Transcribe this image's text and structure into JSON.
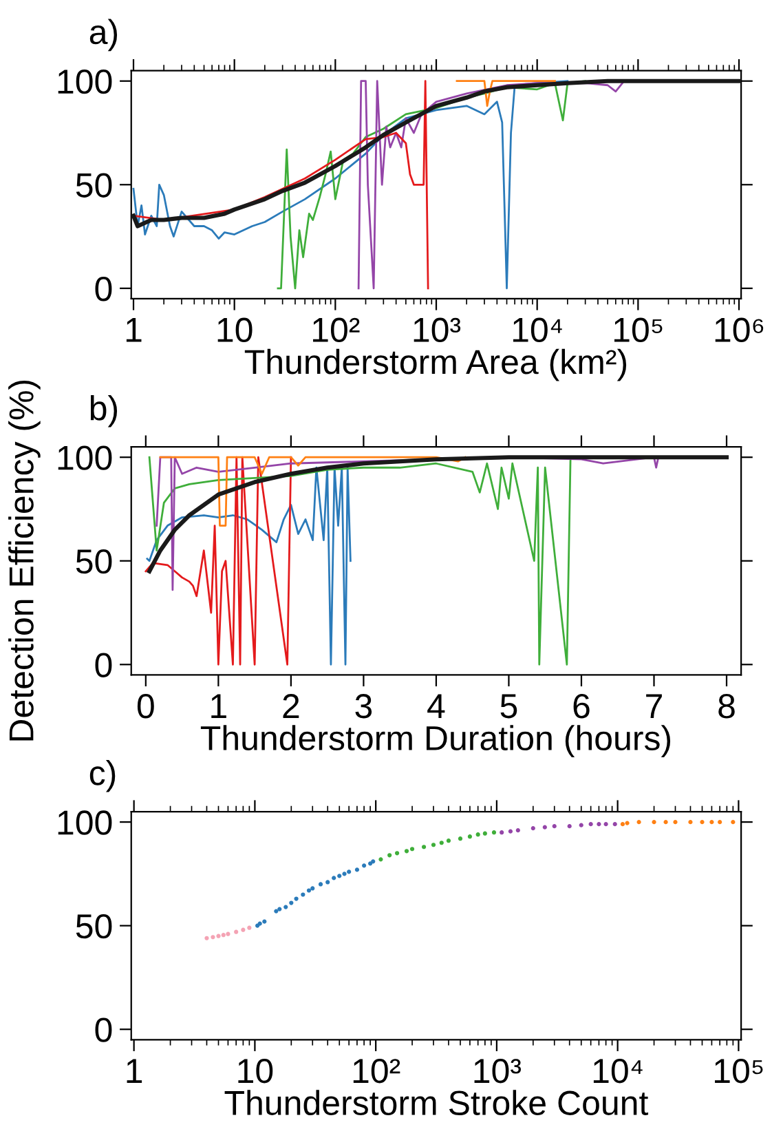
{
  "chart_data": [
    {
      "type": "line",
      "title": "a)",
      "xlabel": "Thunderstorm Area (km²)",
      "log": "x",
      "xlim": [
        0.95,
        1050000.0
      ],
      "ylim": [
        -5,
        105
      ],
      "yticks": [
        0,
        50,
        100
      ],
      "grid": false,
      "legend": false,
      "line_style": "solid",
      "marker": "none",
      "xticks": [
        {
          "value": 1,
          "label": "1"
        },
        {
          "value": 10,
          "label": "10"
        },
        {
          "value": 100,
          "label": "10²"
        },
        {
          "value": 1000,
          "label": "10³"
        },
        {
          "value": 10000,
          "label": "10⁴"
        },
        {
          "value": 100000,
          "label": "10⁵"
        },
        {
          "value": 1000000,
          "label": "10⁶"
        }
      ],
      "series": [
        {
          "color": "#2b7bba",
          "x": [
            1,
            1.1,
            1.2,
            1.3,
            1.5,
            1.7,
            1.8,
            2,
            2.3,
            2.5,
            3,
            4,
            5,
            6,
            7,
            8,
            10,
            15,
            20,
            30,
            50,
            100,
            200,
            300,
            500,
            1000,
            2000,
            3000,
            4000,
            4500,
            5000,
            5500,
            6000,
            10000,
            20000
          ],
          "values": [
            48,
            30,
            40,
            26,
            35,
            30,
            50,
            45,
            30,
            25,
            37,
            30,
            30,
            28,
            24,
            27,
            26,
            30,
            32,
            37,
            43,
            53,
            65,
            74,
            82,
            86,
            88,
            84,
            90,
            80,
            0,
            75,
            98,
            99,
            100
          ]
        },
        {
          "color": "#3fae3a",
          "x": [
            27,
            29,
            33,
            36,
            40,
            44,
            48,
            55,
            60,
            70,
            80,
            90,
            100,
            120,
            150,
            200,
            300,
            500,
            1000,
            2000,
            3000,
            5000,
            10000,
            15000,
            18000,
            20000,
            30000
          ],
          "values": [
            0,
            0,
            67,
            25,
            0,
            28,
            15,
            36,
            33,
            44,
            55,
            66,
            43,
            62,
            65,
            73,
            77,
            84,
            87,
            92,
            94,
            97,
            96,
            99,
            81,
            99,
            100
          ]
        },
        {
          "color": "#9445a8",
          "x": [
            170,
            180,
            200,
            210,
            240,
            260,
            290,
            320,
            350,
            400,
            450,
            500,
            600,
            700,
            800,
            1000,
            2000,
            5000,
            10000,
            30000,
            50000,
            60000,
            70000
          ],
          "values": [
            0,
            100,
            100,
            50,
            0,
            100,
            50,
            78,
            68,
            75,
            68,
            82,
            75,
            83,
            86,
            90,
            94,
            98,
            99,
            99,
            98,
            95,
            99
          ]
        },
        {
          "color": "#e41a1c",
          "x": [
            1,
            2,
            10,
            20,
            50,
            100,
            200,
            300,
            400,
            500,
            550,
            600,
            750,
            780,
            830
          ],
          "values": [
            35,
            33,
            38,
            44,
            53,
            62,
            72,
            73,
            75,
            70,
            55,
            50,
            50,
            100,
            0
          ]
        },
        {
          "color": "#ff8013",
          "x": [
            1600,
            3000,
            3200,
            3400,
            3600,
            5000,
            10000,
            15000
          ],
          "values": [
            100,
            100,
            88,
            95,
            100,
            100,
            100,
            100
          ]
        },
        {
          "color": "#1a1a1a",
          "x": [
            1,
            1.1,
            1.5,
            2,
            3,
            5,
            8,
            10,
            20,
            30,
            50,
            100,
            200,
            300,
            500,
            1000,
            2000,
            3000,
            5000,
            10000,
            20000,
            50000,
            100000,
            1000000
          ],
          "values": [
            35,
            30,
            33,
            33,
            34,
            34,
            36,
            38,
            43,
            47,
            51,
            59,
            68,
            74,
            80,
            88,
            92,
            95,
            97,
            98,
            99,
            100,
            100,
            100
          ]
        }
      ]
    },
    {
      "type": "line",
      "title": "b)",
      "xlabel": "Thunderstorm Duration (hours)",
      "ylabel": "Detection Efficiency (%)",
      "xlim": [
        -0.2,
        8.2
      ],
      "ylim": [
        -5,
        105
      ],
      "xticks": [
        0,
        1,
        2,
        3,
        4,
        5,
        6,
        7,
        8
      ],
      "yticks": [
        0,
        50,
        100
      ],
      "grid": false,
      "legend": false,
      "line_style": "solid",
      "marker": "none",
      "series": [
        {
          "color": "#2b7bba",
          "x": [
            0.02,
            0.05,
            0.15,
            0.3,
            0.5,
            0.8,
            1,
            1.2,
            1.4,
            1.6,
            1.8,
            1.9,
            2,
            2.1,
            2.2,
            2.3,
            2.35,
            2.45,
            2.5,
            2.55,
            2.6,
            2.65,
            2.7,
            2.75,
            2.78,
            2.82
          ],
          "values": [
            51,
            50,
            60,
            67,
            71,
            72,
            71,
            72,
            70,
            65,
            59,
            70,
            77,
            63,
            70,
            60,
            95,
            60,
            95,
            0,
            95,
            67,
            95,
            0,
            95,
            50
          ]
        },
        {
          "color": "#e41a1c",
          "x": [
            0,
            0.1,
            0.3,
            0.5,
            0.6,
            0.65,
            0.7,
            0.8,
            0.9,
            0.95,
            1.0,
            1.05,
            1.1,
            1.2,
            1.25,
            1.3,
            1.33,
            1.5,
            1.55,
            1.95,
            2.0
          ],
          "values": [
            45,
            49,
            48,
            42,
            40,
            38,
            33,
            55,
            25,
            67,
            0,
            45,
            50,
            0,
            100,
            0,
            100,
            0,
            100,
            0,
            100
          ]
        },
        {
          "color": "#3fae3a",
          "x": [
            0.05,
            0.15,
            0.25,
            0.4,
            0.6,
            1,
            1.5,
            2,
            2.5,
            3,
            3.5,
            4,
            4.5,
            4.6,
            4.7,
            4.85,
            4.9,
            5,
            5.05,
            5.35,
            5.4,
            5.42,
            5.5,
            5.8,
            5.85,
            6
          ],
          "values": [
            100,
            55,
            78,
            85,
            87,
            89,
            90,
            91,
            94,
            95,
            95,
            97,
            93,
            83,
            97,
            75,
            95,
            80,
            97,
            50,
            95,
            0,
            95,
            0,
            100,
            100
          ]
        },
        {
          "color": "#9445a8",
          "x": [
            0.15,
            0.2,
            0.3,
            0.35,
            0.37,
            0.4,
            0.5,
            0.7,
            1,
            1.5,
            2,
            3,
            4,
            5,
            6,
            6.3,
            7,
            7.03,
            7.06
          ],
          "values": [
            67,
            100,
            100,
            100,
            36,
            100,
            92,
            95,
            93,
            95,
            97,
            98,
            99,
            100,
            99,
            97,
            100,
            95,
            100
          ]
        },
        {
          "color": "#ff8013",
          "x": [
            0.2,
            1,
            1.02,
            1.1,
            1.12,
            1.5,
            1.6,
            1.7,
            2,
            2.1,
            2.2,
            3,
            4,
            4.3,
            4.4
          ],
          "values": [
            100,
            100,
            67,
            67,
            100,
            100,
            92,
            100,
            100,
            96,
            100,
            100,
            100,
            98,
            100
          ]
        },
        {
          "color": "#1a1a1a",
          "x": [
            0.05,
            0.2,
            0.4,
            0.6,
            0.8,
            1,
            1.5,
            2,
            2.5,
            3,
            3.5,
            4,
            5,
            6,
            8
          ],
          "values": [
            45,
            55,
            65,
            72,
            77,
            82,
            88,
            92,
            95,
            97,
            98,
            99,
            100,
            100,
            100
          ]
        }
      ]
    },
    {
      "type": "scatter",
      "title": "c)",
      "xlabel": "Thunderstorm Stroke Count",
      "log": "x",
      "xlim": [
        0.95,
        105000.0
      ],
      "ylim": [
        -5,
        105
      ],
      "yticks": [
        0,
        50,
        100
      ],
      "grid": false,
      "legend": false,
      "marker": "circle",
      "xticks": [
        {
          "value": 1,
          "label": "1"
        },
        {
          "value": 10,
          "label": "10"
        },
        {
          "value": 100,
          "label": "10²"
        },
        {
          "value": 1000,
          "label": "10³"
        },
        {
          "value": 10000,
          "label": "10⁴"
        },
        {
          "value": 100000,
          "label": "10⁵"
        }
      ],
      "series": [
        {
          "color": "#f4a3b4",
          "x": [
            4,
            4.5,
            5,
            5.5,
            6,
            7,
            8,
            9
          ],
          "values": [
            44,
            44.5,
            45,
            45.5,
            46,
            47,
            48,
            49
          ]
        },
        {
          "color": "#2b7bba",
          "x": [
            10.5,
            11,
            12,
            15,
            16,
            18,
            20,
            22,
            25,
            28,
            30,
            35,
            40,
            45,
            50,
            55,
            60,
            70,
            80,
            90,
            95
          ],
          "values": [
            50,
            51,
            52,
            57,
            58,
            59,
            61,
            63,
            65,
            67,
            68,
            70,
            71,
            73,
            74,
            75,
            76,
            77,
            79,
            80,
            81
          ]
        },
        {
          "color": "#3fae3a",
          "x": [
            110,
            130,
            150,
            180,
            200,
            250,
            300,
            350,
            400,
            500,
            600,
            700,
            800,
            950
          ],
          "values": [
            82,
            84,
            85,
            86,
            87,
            88,
            89,
            90,
            91,
            92,
            93,
            94,
            94.5,
            95
          ]
        },
        {
          "color": "#9445a8",
          "x": [
            1100,
            1300,
            1500,
            2000,
            2500,
            3000,
            4000,
            5000,
            6000,
            7000,
            8000,
            9500
          ],
          "values": [
            95,
            95.5,
            96,
            97,
            97.5,
            98,
            98,
            98.5,
            99,
            99,
            99,
            99
          ]
        },
        {
          "color": "#ff8013",
          "x": [
            11000,
            12000,
            15000,
            20000,
            25000,
            30000,
            40000,
            50000,
            60000,
            70000,
            90000
          ],
          "values": [
            99,
            99.5,
            100,
            100,
            100,
            100,
            100,
            100,
            100,
            100,
            100
          ]
        }
      ]
    }
  ]
}
